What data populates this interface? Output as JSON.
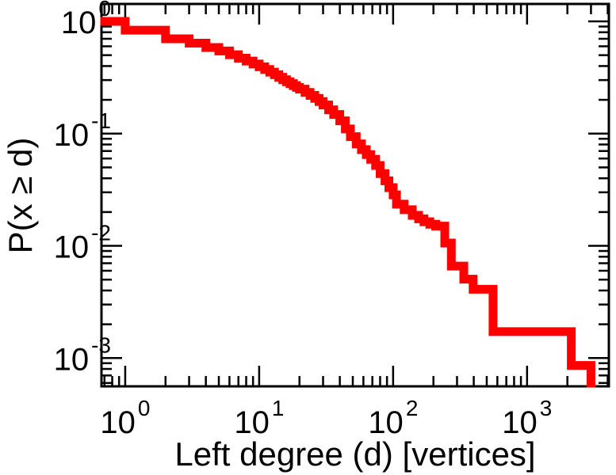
{
  "figure": {
    "background": "#ffffff",
    "frame_color": "#000000",
    "text_color": "#000000"
  },
  "x_axis": {
    "label": "Left degree (d) [vertices]",
    "scale": "log",
    "min": 0.665,
    "max": 4080,
    "base": "10",
    "major_ticks": [
      {
        "value": 1,
        "exp": "0"
      },
      {
        "value": 10,
        "exp": "1"
      },
      {
        "value": 100,
        "exp": "2"
      },
      {
        "value": 1000,
        "exp": "3"
      }
    ]
  },
  "y_axis": {
    "label": "P(x ≥ d)",
    "scale": "log",
    "min": 0.00056,
    "max": 1.43,
    "base": "10",
    "major_ticks": [
      {
        "value": 1,
        "exp": "0"
      },
      {
        "value": 0.1,
        "exp": "-1"
      },
      {
        "value": 0.01,
        "exp": "-2"
      },
      {
        "value": 0.001,
        "exp": "-3"
      }
    ]
  },
  "chart_data": {
    "type": "line",
    "style": "ccdf-staircase",
    "title": "",
    "xlabel": "Left degree (d) [vertices]",
    "ylabel": "P(x ≥ d)",
    "xscale": "log",
    "yscale": "log",
    "xlim": [
      0.665,
      4080
    ],
    "ylim": [
      0.00056,
      1.43
    ],
    "grid": false,
    "legend": "none",
    "color": "#ff0000",
    "line_width": 11,
    "initial_value": 1.0,
    "points_format": [
      "degree d (drop location)",
      "P(x >= d) after drop"
    ],
    "points": [
      [
        1,
        0.835
      ],
      [
        2,
        0.7
      ],
      [
        3,
        0.64
      ],
      [
        4,
        0.585
      ],
      [
        5,
        0.545
      ],
      [
        6,
        0.505
      ],
      [
        7,
        0.47
      ],
      [
        8,
        0.443
      ],
      [
        9,
        0.417
      ],
      [
        10,
        0.394
      ],
      [
        11,
        0.373
      ],
      [
        12,
        0.353
      ],
      [
        13,
        0.335
      ],
      [
        14,
        0.318
      ],
      [
        15,
        0.302
      ],
      [
        16,
        0.29
      ],
      [
        17,
        0.279
      ],
      [
        18,
        0.268
      ],
      [
        19,
        0.258
      ],
      [
        20,
        0.249
      ],
      [
        22,
        0.233
      ],
      [
        24,
        0.219
      ],
      [
        26,
        0.206
      ],
      [
        28,
        0.193
      ],
      [
        30,
        0.18
      ],
      [
        33,
        0.163
      ],
      [
        36,
        0.148
      ],
      [
        40,
        0.13
      ],
      [
        44,
        0.11
      ],
      [
        48,
        0.094
      ],
      [
        53,
        0.081
      ],
      [
        58,
        0.072
      ],
      [
        63,
        0.065
      ],
      [
        68,
        0.059
      ],
      [
        74,
        0.052
      ],
      [
        80,
        0.044
      ],
      [
        87,
        0.038
      ],
      [
        93,
        0.033
      ],
      [
        100,
        0.0285
      ],
      [
        106,
        0.0235
      ],
      [
        121,
        0.021
      ],
      [
        139,
        0.0187
      ],
      [
        155,
        0.0174
      ],
      [
        170,
        0.0164
      ],
      [
        188,
        0.0156
      ],
      [
        208,
        0.015
      ],
      [
        243,
        0.0106
      ],
      [
        272,
        0.0066
      ],
      [
        337,
        0.00505
      ],
      [
        396,
        0.0041
      ],
      [
        557,
        0.00172
      ],
      [
        2140,
        0.00086
      ],
      [
        3000,
        0.0004
      ]
    ]
  }
}
